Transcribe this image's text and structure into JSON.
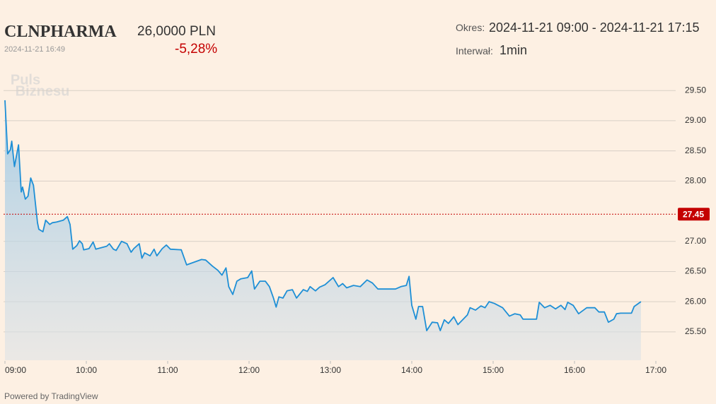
{
  "header": {
    "ticker": "CLNPHARMA",
    "price": "26,0000 PLN",
    "timestamp": "2024-11-21 16:49",
    "change": "-5,28%",
    "period_label": "Okres:",
    "period": "2024-11-21 09:00 - 2024-11-21 17:15",
    "interval_label": "Interwał:",
    "interval": "1min"
  },
  "watermark": [
    "Puls",
    "Biznesu"
  ],
  "footer": "Powered by TradingView",
  "chart_data": {
    "type": "line",
    "color": "#1e8fd6",
    "x": [
      "09:00",
      "09:02",
      "09:04",
      "09:05",
      "09:07",
      "09:10",
      "09:12",
      "09:13",
      "09:15",
      "09:17",
      "09:19",
      "09:21",
      "09:24",
      "09:25",
      "09:28",
      "09:30",
      "09:33",
      "09:35",
      "09:38",
      "09:43",
      "09:46",
      "09:48",
      "09:50",
      "09:53",
      "09:55",
      "09:57",
      "09:58",
      "10:02",
      "10:05",
      "10:07",
      "10:15",
      "10:17",
      "10:20",
      "10:22",
      "10:26",
      "10:30",
      "10:33",
      "10:35",
      "10:39",
      "10:41",
      "10:43",
      "10:47",
      "10:50",
      "10:52",
      "10:56",
      "10:59",
      "11:02",
      "11:10",
      "11:14",
      "11:25",
      "11:28",
      "11:33",
      "11:37",
      "11:40",
      "11:43",
      "11:45",
      "11:48",
      "11:51",
      "11:54",
      "11:59",
      "12:02",
      "12:04",
      "12:08",
      "12:12",
      "12:15",
      "12:18",
      "12:20",
      "12:22",
      "12:25",
      "12:28",
      "12:32",
      "12:35",
      "12:40",
      "12:43",
      "12:45",
      "12:49",
      "12:52",
      "12:56",
      "13:02",
      "13:06",
      "13:09",
      "13:12",
      "13:17",
      "13:22",
      "13:27",
      "13:31",
      "13:35",
      "13:48",
      "13:52",
      "13:56",
      "13:58",
      "14:00",
      "14:03",
      "14:05",
      "14:08",
      "14:11",
      "14:15",
      "14:19",
      "14:21",
      "14:24",
      "14:27",
      "14:31",
      "14:34",
      "14:38",
      "14:41",
      "14:43",
      "14:47",
      "14:51",
      "14:54",
      "14:57",
      "15:01",
      "15:07",
      "15:12",
      "15:16",
      "15:20",
      "15:22",
      "15:32",
      "15:34",
      "15:38",
      "15:42",
      "15:46",
      "15:50",
      "15:53",
      "15:55",
      "15:59",
      "16:03",
      "16:09",
      "16:15",
      "16:18",
      "16:22",
      "16:25",
      "16:29",
      "16:31",
      "16:34",
      "16:42",
      "16:44",
      "16:49"
    ],
    "values": [
      29.34,
      28.45,
      28.52,
      28.66,
      28.24,
      28.6,
      27.82,
      27.9,
      27.7,
      27.75,
      28.05,
      27.93,
      27.31,
      27.2,
      27.16,
      27.35,
      27.28,
      27.31,
      27.32,
      27.35,
      27.41,
      27.28,
      26.87,
      26.93,
      27.01,
      26.96,
      26.86,
      26.88,
      26.99,
      26.87,
      26.92,
      26.96,
      26.87,
      26.85,
      27.0,
      26.96,
      26.82,
      26.88,
      26.96,
      26.72,
      26.81,
      26.76,
      26.87,
      26.76,
      26.88,
      26.94,
      26.87,
      26.86,
      26.61,
      26.7,
      26.69,
      26.59,
      26.52,
      26.44,
      26.56,
      26.25,
      26.12,
      26.34,
      26.38,
      26.4,
      26.51,
      26.21,
      26.34,
      26.34,
      26.25,
      26.06,
      25.91,
      26.08,
      26.06,
      26.18,
      26.2,
      26.06,
      26.2,
      26.17,
      26.25,
      26.18,
      26.24,
      26.28,
      26.4,
      26.25,
      26.3,
      26.23,
      26.27,
      26.25,
      26.36,
      26.31,
      26.21,
      26.21,
      26.25,
      26.27,
      26.42,
      25.94,
      25.71,
      25.92,
      25.92,
      25.52,
      25.66,
      25.65,
      25.52,
      25.7,
      25.64,
      25.75,
      25.62,
      25.71,
      25.78,
      25.9,
      25.86,
      25.93,
      25.9,
      26.0,
      25.97,
      25.9,
      25.76,
      25.8,
      25.78,
      25.71,
      25.71,
      25.99,
      25.9,
      25.94,
      25.88,
      25.94,
      25.87,
      25.99,
      25.94,
      25.8,
      25.9,
      25.9,
      25.83,
      25.83,
      25.66,
      25.71,
      25.8,
      25.81,
      25.81,
      25.92,
      26.0
    ],
    "reference_line": {
      "value": 27.45,
      "color": "#c40000"
    },
    "xlim": [
      "09:00",
      "17:12"
    ],
    "xticks": [
      "09:00",
      "10:00",
      "11:00",
      "12:00",
      "13:00",
      "14:00",
      "15:00",
      "16:00",
      "17:00"
    ],
    "ylim": [
      25.03,
      29.83
    ],
    "yticks": [
      {
        "value": 25.5,
        "label": "25.50"
      },
      {
        "value": 26,
        "label": "26.00"
      },
      {
        "value": 26.5,
        "label": "26.50"
      },
      {
        "value": 27,
        "label": "27.00"
      },
      {
        "value": 28,
        "label": "28.00"
      },
      {
        "value": 28.5,
        "label": "28.50"
      },
      {
        "value": 29,
        "label": "29.00"
      },
      {
        "value": 29.5,
        "label": "29.50"
      }
    ],
    "grid": true
  }
}
